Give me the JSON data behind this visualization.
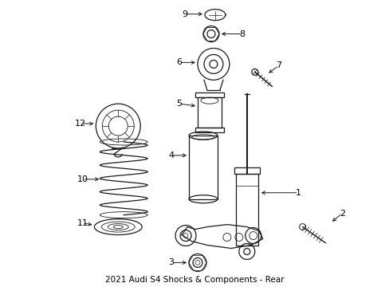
{
  "title": "2021 Audi S4 Shocks & Components - Rear",
  "bg_color": "#ffffff",
  "line_color": "#1a1a1a",
  "label_color": "#000000",
  "fig_width": 4.89,
  "fig_height": 3.6,
  "dpi": 100
}
